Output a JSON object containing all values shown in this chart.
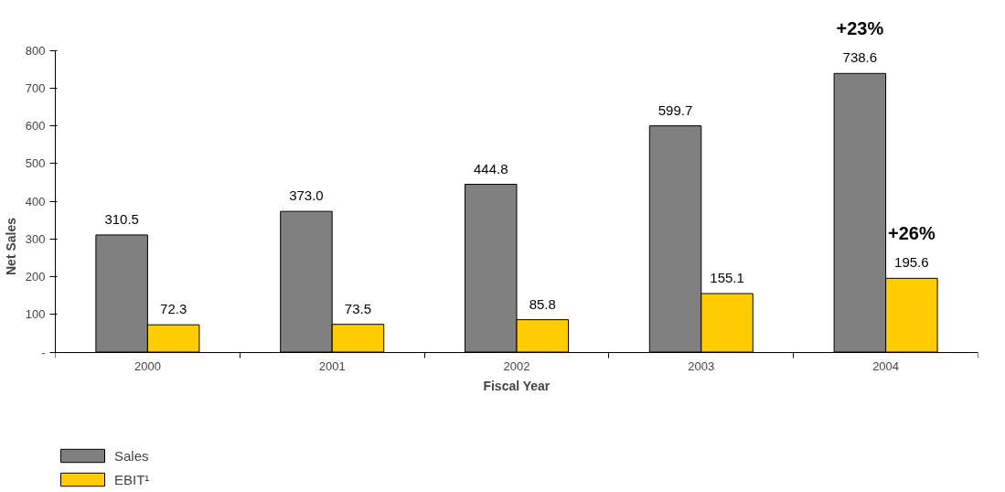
{
  "chart_data": {
    "type": "bar",
    "xlabel": "Fiscal Year",
    "ylabel": "Net Sales",
    "categories": [
      "2000",
      "2001",
      "2002",
      "2003",
      "2004"
    ],
    "series": [
      {
        "name": "Sales",
        "color": "#808080",
        "values": [
          310.5,
          373.0,
          444.8,
          599.7,
          738.6
        ],
        "value_labels": [
          "310.5",
          "373.0",
          "444.8",
          "599.7",
          "738.6"
        ]
      },
      {
        "name": "EBIT¹",
        "color": "#ffcc00",
        "values": [
          72.3,
          73.5,
          85.8,
          155.1,
          195.6
        ],
        "value_labels": [
          "72.3",
          "73.5",
          "85.8",
          "155.1",
          "195.6"
        ]
      }
    ],
    "ylim": [
      0,
      800
    ],
    "yticks": [
      {
        "value": 0,
        "label": "-"
      },
      100,
      200,
      300,
      400,
      500,
      600,
      700,
      800
    ],
    "grid": false,
    "legend": "bottom left",
    "annotations": [
      "+23%",
      "+26%"
    ]
  }
}
